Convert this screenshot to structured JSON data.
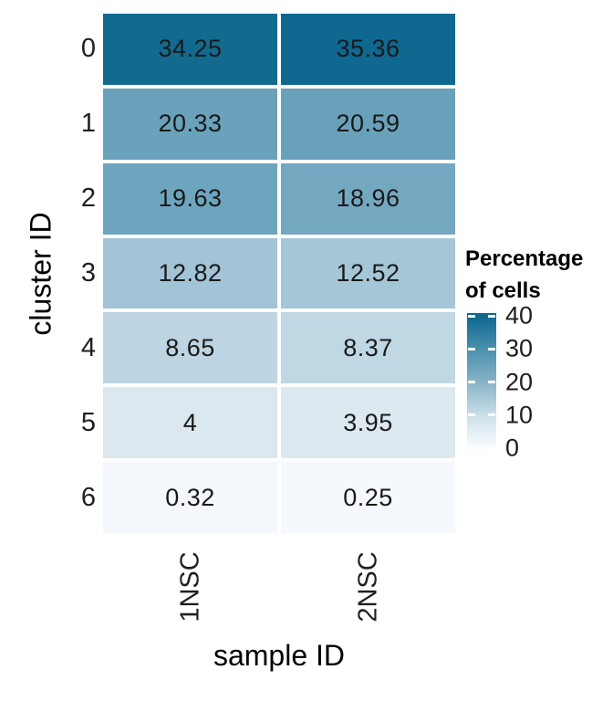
{
  "chart_data": {
    "type": "heatmap",
    "title": "",
    "xlabel": "sample ID",
    "ylabel": "cluster ID",
    "x_categories": [
      "1NSC",
      "2NSC"
    ],
    "y_categories": [
      "0",
      "1",
      "2",
      "3",
      "4",
      "5",
      "6"
    ],
    "series": [
      {
        "name": "1NSC",
        "values": [
          34.25,
          20.33,
          19.63,
          12.82,
          8.65,
          4,
          0.32
        ]
      },
      {
        "name": "2NSC",
        "values": [
          35.36,
          20.59,
          18.96,
          12.52,
          8.37,
          3.95,
          0.25
        ]
      }
    ],
    "rows": [
      {
        "cluster": "0",
        "cells": [
          {
            "sample": "1NSC",
            "value": 34.25,
            "label": "34.25",
            "color": "#126A8F"
          },
          {
            "sample": "2NSC",
            "value": 35.36,
            "label": "35.36",
            "color": "#0F6890"
          }
        ]
      },
      {
        "cluster": "1",
        "cells": [
          {
            "sample": "1NSC",
            "value": 20.33,
            "label": "20.33",
            "color": "#6AA2BC"
          },
          {
            "sample": "2NSC",
            "value": 20.59,
            "label": "20.59",
            "color": "#69A1BB"
          }
        ]
      },
      {
        "cluster": "2",
        "cells": [
          {
            "sample": "1NSC",
            "value": 19.63,
            "label": "19.63",
            "color": "#6EA5BE"
          },
          {
            "sample": "2NSC",
            "value": 18.96,
            "label": "18.96",
            "color": "#74A8C1"
          }
        ]
      },
      {
        "cluster": "3",
        "cells": [
          {
            "sample": "1NSC",
            "value": 12.82,
            "label": "12.82",
            "color": "#A2C4D6"
          },
          {
            "sample": "2NSC",
            "value": 12.52,
            "label": "12.52",
            "color": "#A4C6D7"
          }
        ]
      },
      {
        "cluster": "4",
        "cells": [
          {
            "sample": "1NSC",
            "value": 8.65,
            "label": "8.65",
            "color": "#BDD5E2"
          },
          {
            "sample": "2NSC",
            "value": 8.37,
            "label": "8.37",
            "color": "#C0D7E4"
          }
        ]
      },
      {
        "cluster": "5",
        "cells": [
          {
            "sample": "1NSC",
            "value": 4,
            "label": "4",
            "color": "#DBE8F0"
          },
          {
            "sample": "2NSC",
            "value": 3.95,
            "label": "3.95",
            "color": "#DCE9F1"
          }
        ]
      },
      {
        "cluster": "6",
        "cells": [
          {
            "sample": "1NSC",
            "value": 0.32,
            "label": "0.32",
            "color": "#F4F7FB"
          },
          {
            "sample": "2NSC",
            "value": 0.25,
            "label": "0.25",
            "color": "#F5F8FC"
          }
        ]
      }
    ],
    "legend": {
      "title_lines": [
        "Percentage",
        "of cells"
      ],
      "tick_labels": [
        "40",
        "30",
        "20",
        "10",
        "0"
      ],
      "scale_range": [
        0,
        40
      ],
      "gradient_stops": [
        {
          "value": 40,
          "color": "#0E6890"
        },
        {
          "value": 30,
          "color": "#4B90AC"
        },
        {
          "value": 20,
          "color": "#87B3C7"
        },
        {
          "value": 10,
          "color": "#CBDFE9"
        },
        {
          "value": 0,
          "color": "#FCFDFF"
        }
      ],
      "position": "right"
    },
    "layout": {
      "grid": "off",
      "cell_border_color": "#FFFFFF",
      "background": "#FFFFFF",
      "x_tick_rotation_deg": 90,
      "text_color": "#1A1A1A"
    }
  }
}
